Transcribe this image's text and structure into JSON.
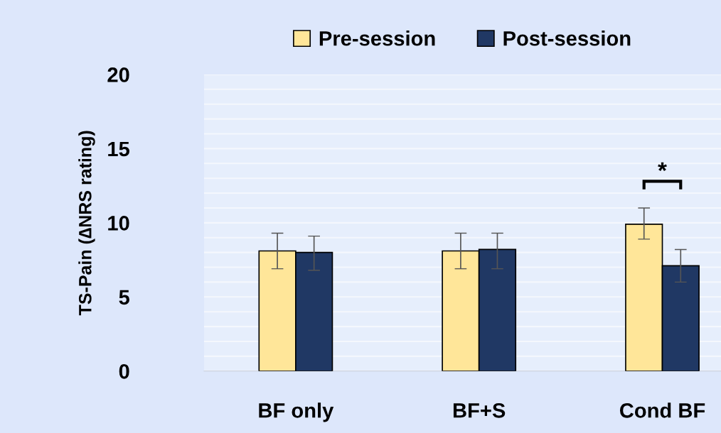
{
  "chart_data": {
    "type": "bar",
    "ylabel": "TS-Pain (∆NRS rating)",
    "categories": [
      "BF only",
      "BF+S",
      "Cond BF"
    ],
    "series": [
      {
        "name": "Pre-session",
        "color": "#ffe699",
        "values": [
          8.1,
          8.1,
          9.9
        ],
        "errors": [
          [
            6.9,
            9.3
          ],
          [
            6.9,
            9.3
          ],
          [
            8.9,
            11.0
          ]
        ]
      },
      {
        "name": "Post-session",
        "color": "#203864",
        "values": [
          8.0,
          8.2,
          7.1
        ],
        "errors": [
          [
            6.8,
            9.1
          ],
          [
            6.9,
            9.3
          ],
          [
            6.0,
            8.2
          ]
        ]
      }
    ],
    "ylim": [
      0,
      20
    ],
    "yticks": [
      0,
      {
        "value": 1,
        "label": null
      },
      {
        "value": 2,
        "label": null
      },
      {
        "value": 3,
        "label": null
      },
      {
        "value": 4,
        "label": null
      },
      5,
      {
        "value": 6,
        "label": null
      },
      {
        "value": 7,
        "label": null
      },
      {
        "value": 8,
        "label": null
      },
      {
        "value": 9,
        "label": null
      },
      10,
      {
        "value": 11,
        "label": null
      },
      {
        "value": 12,
        "label": null
      },
      {
        "value": 13,
        "label": null
      },
      {
        "value": 14,
        "label": null
      },
      15,
      {
        "value": 16,
        "label": null
      },
      {
        "value": 17,
        "label": null
      },
      {
        "value": 18,
        "label": null
      },
      {
        "value": 19,
        "label": null
      },
      20
    ],
    "grid": "y",
    "legend": "top",
    "annotations": [
      "*"
    ]
  }
}
